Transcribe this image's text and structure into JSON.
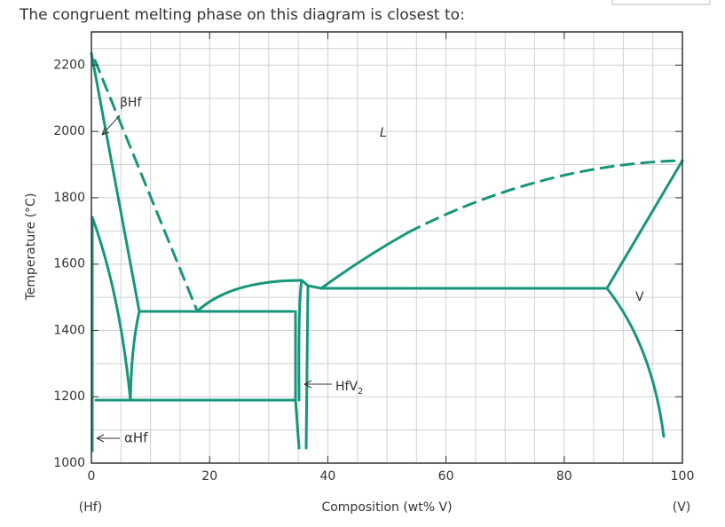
{
  "question": "The congruent melting phase on this diagram is closest to:",
  "chart_data": {
    "type": "phase-diagram",
    "xlabel": "Composition (wt% V)",
    "ylabel": "Temperature (°C)",
    "left_end_label": "(Hf)",
    "right_end_label": "(V)",
    "xlim": [
      0,
      100
    ],
    "ylim": [
      1000,
      2300
    ],
    "xticks": [
      0,
      20,
      40,
      60,
      80,
      100
    ],
    "yticks": [
      1000,
      1200,
      1400,
      1600,
      1800,
      2000,
      2200
    ],
    "grid": true,
    "color": "#16967a",
    "phase_labels": {
      "beta_hf": "βHf",
      "liquid": "L",
      "v": "V",
      "alpha_hf": "αHf",
      "hfv2": {
        "text": "HfV",
        "subscript": "2"
      }
    }
  }
}
